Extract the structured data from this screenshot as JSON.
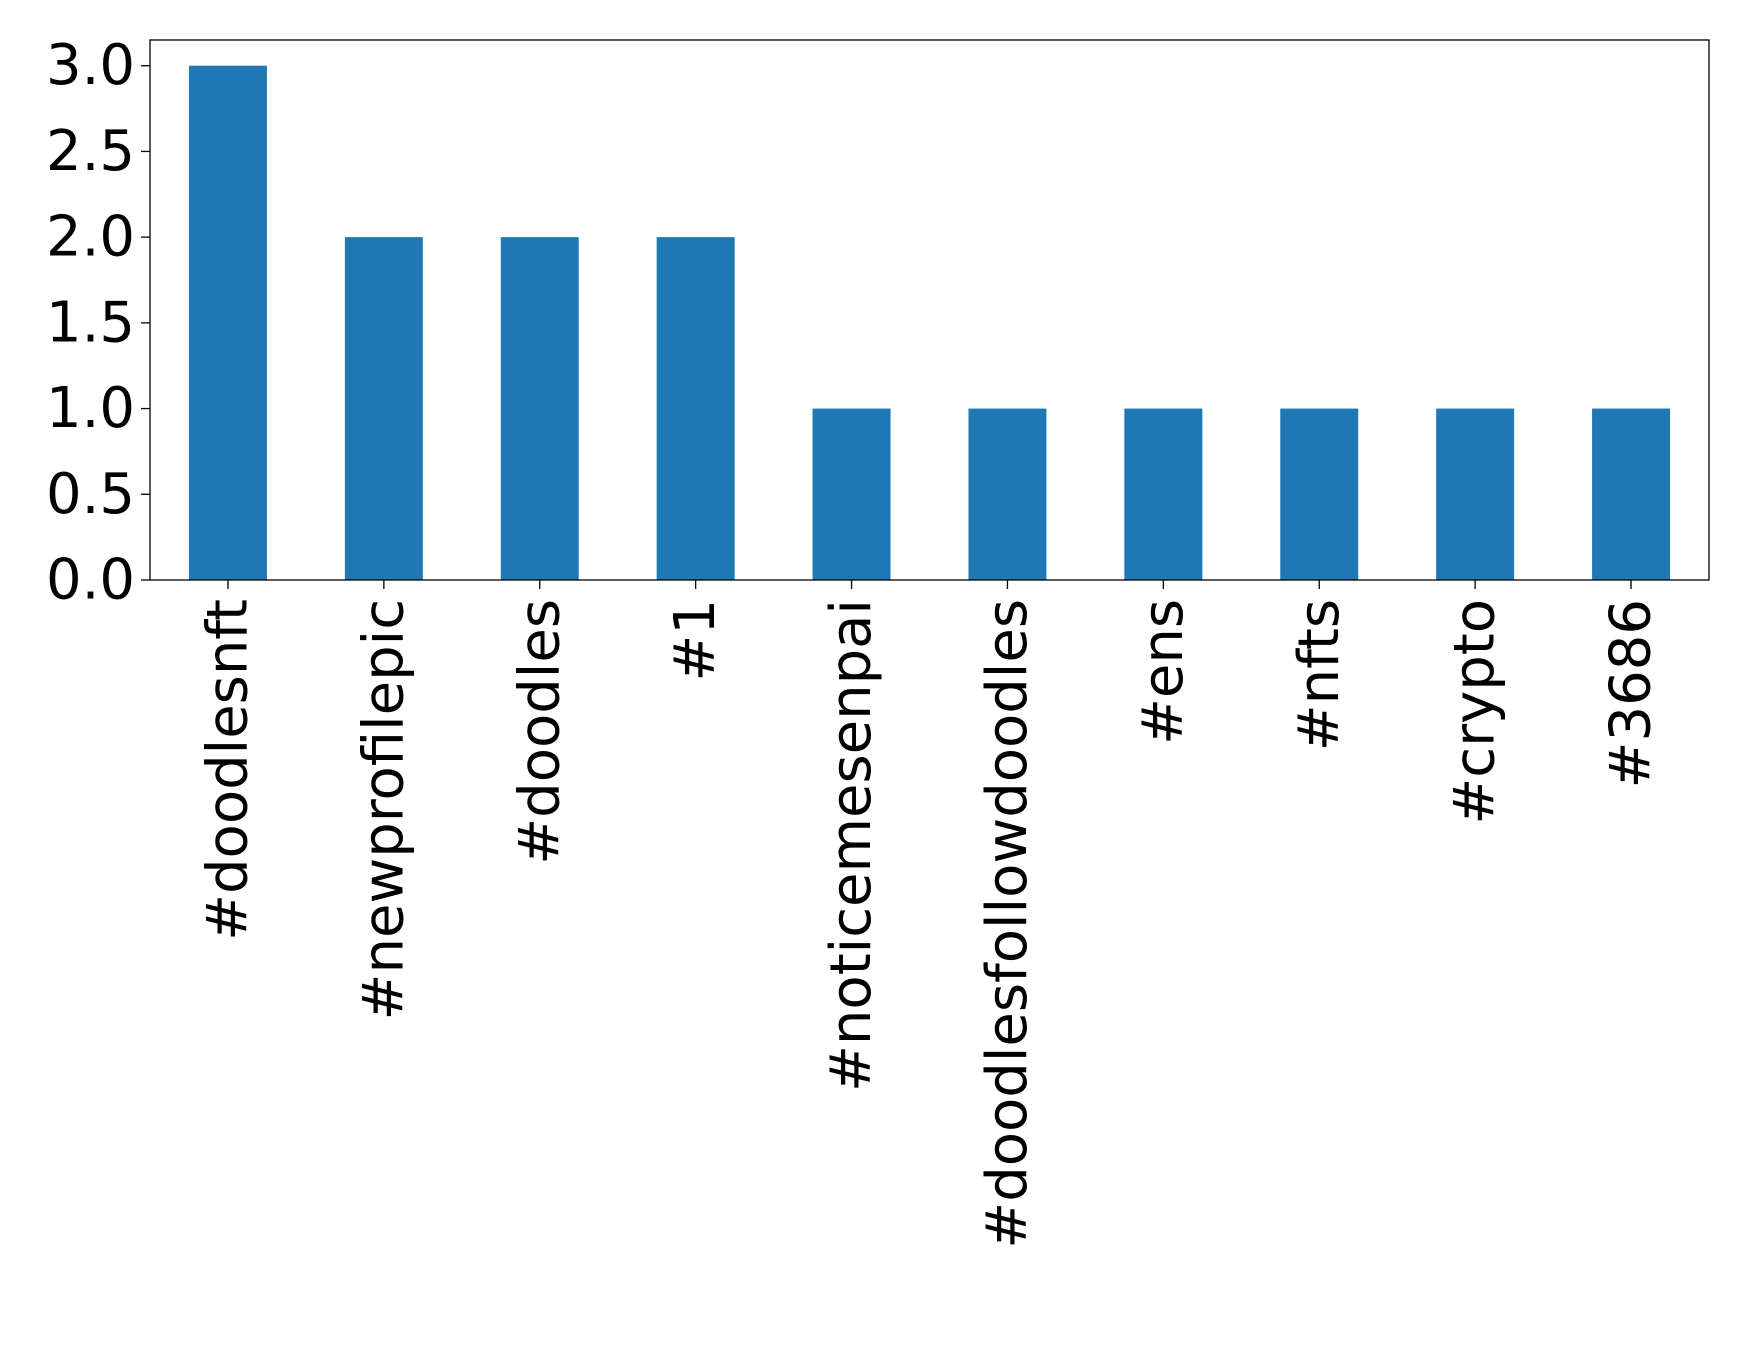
{
  "chart_data": {
    "type": "bar",
    "title": "",
    "xlabel": "",
    "ylabel": "",
    "categories": [
      "#doodlesnft",
      "#newprofilepic",
      "#doodles",
      "#1",
      "#noticemesenpai",
      "#doodlesfollowdoodles",
      "#ens",
      "#nfts",
      "#crypto",
      "#3686"
    ],
    "values": [
      3,
      2,
      2,
      2,
      1,
      1,
      1,
      1,
      1,
      1
    ],
    "ylim": [
      0,
      3.15
    ],
    "yticks": [
      0.0,
      0.5,
      1.0,
      1.5,
      2.0,
      2.5,
      3.0
    ],
    "ytick_labels": [
      "0.0",
      "0.5",
      "1.0",
      "1.5",
      "2.0",
      "2.5",
      "3.0"
    ],
    "grid": false,
    "legend": "none",
    "bar_color": "#1f77b4"
  }
}
